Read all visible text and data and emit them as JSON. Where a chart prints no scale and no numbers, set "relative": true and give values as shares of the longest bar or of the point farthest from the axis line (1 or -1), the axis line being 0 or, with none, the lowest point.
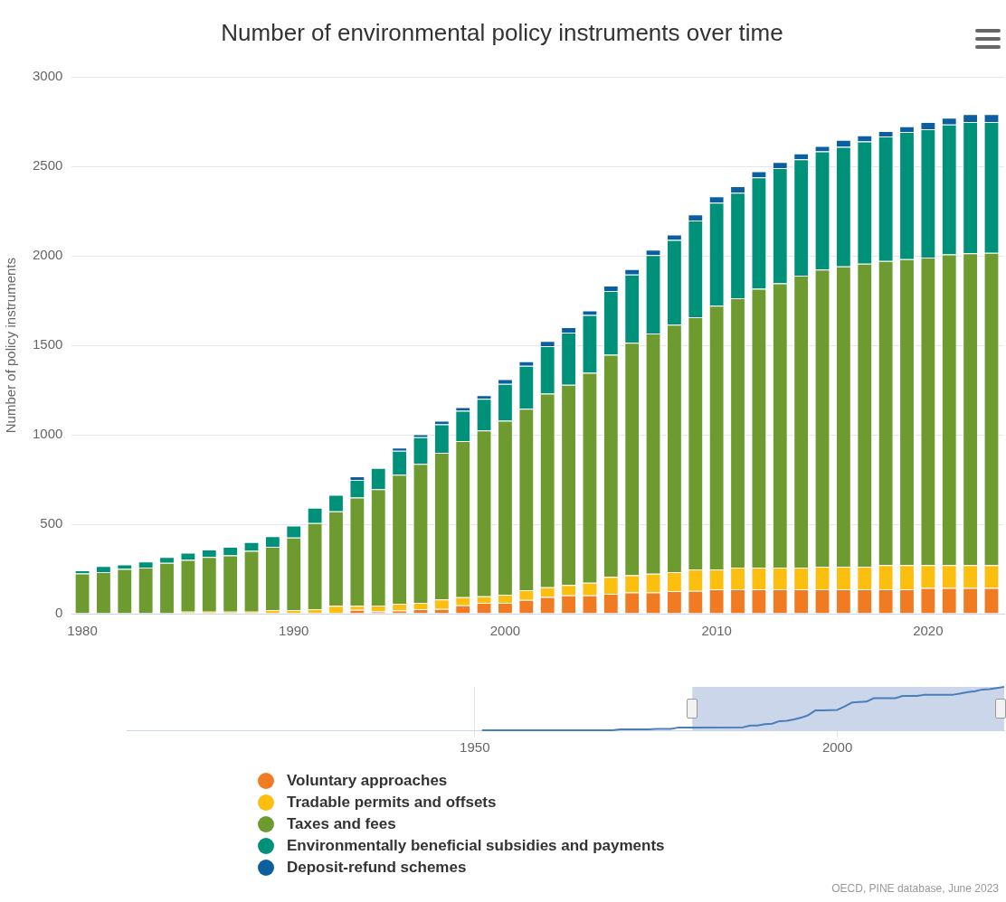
{
  "chart_data": [
    {
      "type": "bar",
      "title": "Number of environmental policy instruments over time",
      "ylabel": "Number of policy instruments",
      "stacked": true,
      "grid": "y",
      "legend": "bottom",
      "x": [
        1980,
        1981,
        1982,
        1983,
        1984,
        1985,
        1986,
        1987,
        1988,
        1989,
        1990,
        1991,
        1992,
        1993,
        1994,
        1995,
        1996,
        1997,
        1998,
        1999,
        2000,
        2001,
        2002,
        2003,
        2004,
        2005,
        2006,
        2007,
        2008,
        2009,
        2010,
        2011,
        2012,
        2013,
        2014,
        2015,
        2016,
        2017,
        2018,
        2019,
        2020,
        2021,
        2022,
        2023
      ],
      "xlim": [
        1979.5,
        2023.6
      ],
      "xticks": [
        1980,
        1990,
        2000,
        2010,
        2020
      ],
      "ylim": [
        0,
        3000
      ],
      "yticks": [
        0,
        500,
        1000,
        1500,
        2000,
        2500,
        3000
      ],
      "series": [
        {
          "name": "Voluntary approaches",
          "color": "#f07b22",
          "values": [
            0,
            0,
            0,
            0,
            0,
            0,
            0,
            0,
            0,
            0,
            0,
            0,
            0,
            22,
            13,
            18,
            25,
            27,
            47,
            60,
            60,
            77,
            94,
            102,
            102,
            111,
            119,
            119,
            126,
            127,
            136,
            136,
            136,
            136,
            136,
            136,
            136,
            136,
            136,
            136,
            144,
            144,
            144,
            144
          ]
        },
        {
          "name": "Tradable permits and offsets",
          "color": "#fcbf0f",
          "values": [
            0,
            0,
            0,
            0,
            0,
            12,
            12,
            12,
            12,
            20,
            20,
            25,
            44,
            22,
            32,
            37,
            35,
            53,
            45,
            37,
            46,
            54,
            54,
            59,
            71,
            95,
            96,
            104,
            106,
            121,
            112,
            122,
            122,
            122,
            122,
            127,
            127,
            127,
            135,
            135,
            127,
            127,
            127,
            127
          ]
        },
        {
          "name": "Taxes and fees",
          "color": "#6e9b30",
          "values": [
            225,
            233,
            250,
            258,
            284,
            288,
            305,
            314,
            339,
            354,
            406,
            482,
            528,
            605,
            651,
            722,
            777,
            819,
            873,
            927,
            973,
            1015,
            1082,
            1119,
            1174,
            1242,
            1300,
            1343,
            1384,
            1409,
            1474,
            1505,
            1558,
            1589,
            1632,
            1661,
            1678,
            1694,
            1701,
            1711,
            1720,
            1737,
            1744,
            1746
          ]
        },
        {
          "name": "Environmentally beneficial subsidies and payments",
          "color": "#00917a",
          "values": [
            17,
            34,
            25,
            34,
            33,
            41,
            42,
            48,
            50,
            59,
            66,
            85,
            92,
            99,
            119,
            134,
            150,
            160,
            169,
            177,
            206,
            240,
            265,
            291,
            323,
            356,
            381,
            439,
            473,
            541,
            575,
            590,
            623,
            644,
            650,
            660,
            668,
            683,
            696,
            711,
            717,
            726,
            734,
            732
          ]
        },
        {
          "name": "Deposit-refund schemes",
          "color": "#0b5fa0",
          "values": [
            0,
            0,
            0,
            0,
            0,
            0,
            0,
            0,
            0,
            0,
            0,
            0,
            0,
            20,
            0,
            17,
            16,
            20,
            20,
            21,
            26,
            25,
            30,
            30,
            25,
            30,
            30,
            30,
            30,
            34,
            36,
            37,
            34,
            34,
            33,
            30,
            39,
            34,
            30,
            31,
            41,
            39,
            43,
            43
          ]
        }
      ],
      "annotations": [
        "OECD, PINE database, June 2023"
      ]
    },
    {
      "type": "line",
      "relative": true,
      "grid": "x",
      "xlim": [
        1902,
        2023
      ],
      "xticks": [
        1950,
        2000
      ],
      "bands": [
        {
          "axis": "x",
          "from": 1980,
          "to": 2023,
          "color": "#ccd6eb"
        }
      ],
      "series": [
        {
          "color": "#4a7ebb",
          "x": [
            1951,
            1969,
            1970,
            1974,
            1975,
            1977,
            1978,
            1987,
            1988,
            1989,
            1990,
            1991,
            1992,
            1993,
            1994,
            1995,
            1996,
            1997,
            1998,
            2000,
            2001,
            2002,
            2004,
            2005,
            2008,
            2009,
            2011,
            2012,
            2016,
            2017,
            2018,
            2019,
            2020,
            2021,
            2023
          ],
          "values": [
            0,
            0,
            0.02,
            0.02,
            0.03,
            0.03,
            0.06,
            0.07,
            0.11,
            0.11,
            0.14,
            0.15,
            0.21,
            0.22,
            0.25,
            0.29,
            0.35,
            0.46,
            0.46,
            0.47,
            0.55,
            0.64,
            0.66,
            0.74,
            0.74,
            0.79,
            0.79,
            0.82,
            0.82,
            0.85,
            0.88,
            0.9,
            0.94,
            0.95,
            1
          ]
        }
      ]
    }
  ]
}
